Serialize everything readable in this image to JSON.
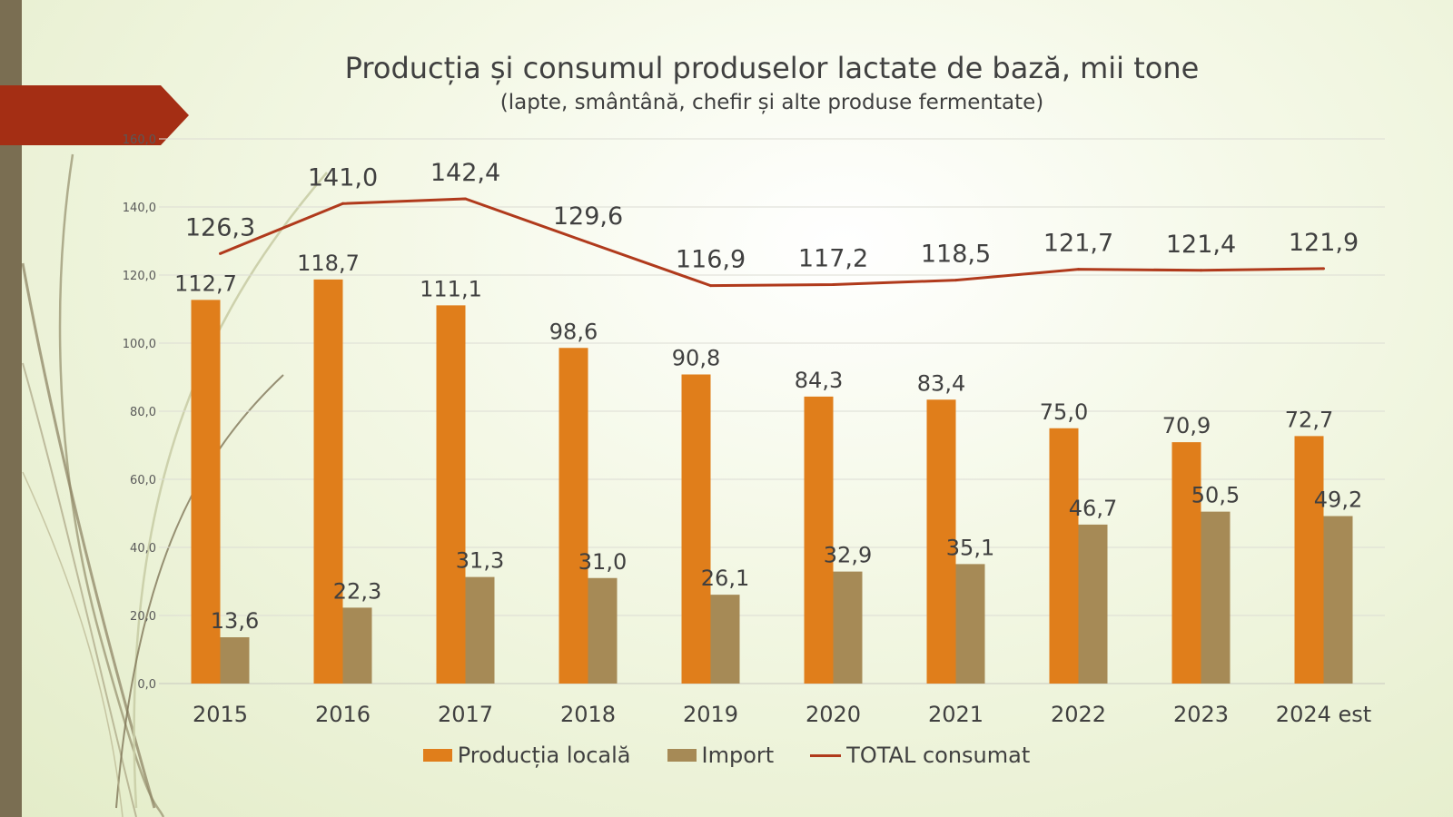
{
  "slide": {
    "sidebar_color": "#7a6e52",
    "arrow_color": "#a42e14"
  },
  "chart_data": {
    "type": "bar",
    "title": "Producția și consumul produselor lactate de bază, mii tone",
    "subtitle": "(lapte, smântână, chefir și alte produse fermentate)",
    "categories": [
      "2015",
      "2016",
      "2017",
      "2018",
      "2019",
      "2020",
      "2021",
      "2022",
      "2023",
      "2024 est"
    ],
    "ylim": [
      0,
      160
    ],
    "yticks": [
      "0,0",
      "20,0",
      "40,0",
      "60,0",
      "80,0",
      "100,0",
      "120,0",
      "140,0",
      "160,0"
    ],
    "grid": true,
    "legend_position": "bottom",
    "series": [
      {
        "name": "Producția locală",
        "type": "bar",
        "color": "#e07e1b",
        "values": [
          112.7,
          118.7,
          111.1,
          98.6,
          90.8,
          84.3,
          83.4,
          75.0,
          70.9,
          72.7
        ],
        "labels": [
          "112,7",
          "118,7",
          "111,1",
          "98,6",
          "90,8",
          "84,3",
          "83,4",
          "75,0",
          "70,9",
          "72,7"
        ]
      },
      {
        "name": "Import",
        "type": "bar",
        "color": "#a68a56",
        "values": [
          13.6,
          22.3,
          31.3,
          31.0,
          26.1,
          32.9,
          35.1,
          46.7,
          50.5,
          49.2
        ],
        "labels": [
          "13,6",
          "22,3",
          "31,3",
          "31,0",
          "26,1",
          "32,9",
          "35,1",
          "46,7",
          "50,5",
          "49,2"
        ]
      },
      {
        "name": "TOTAL consumat",
        "type": "line",
        "color": "#b03a1c",
        "values": [
          126.3,
          141.0,
          142.4,
          129.6,
          116.9,
          117.2,
          118.5,
          121.7,
          121.4,
          121.9
        ],
        "labels": [
          "126,3",
          "141,0",
          "142,4",
          "129,6",
          "116,9",
          "117,2",
          "118,5",
          "121,7",
          "121,4",
          "121,9"
        ]
      }
    ]
  }
}
